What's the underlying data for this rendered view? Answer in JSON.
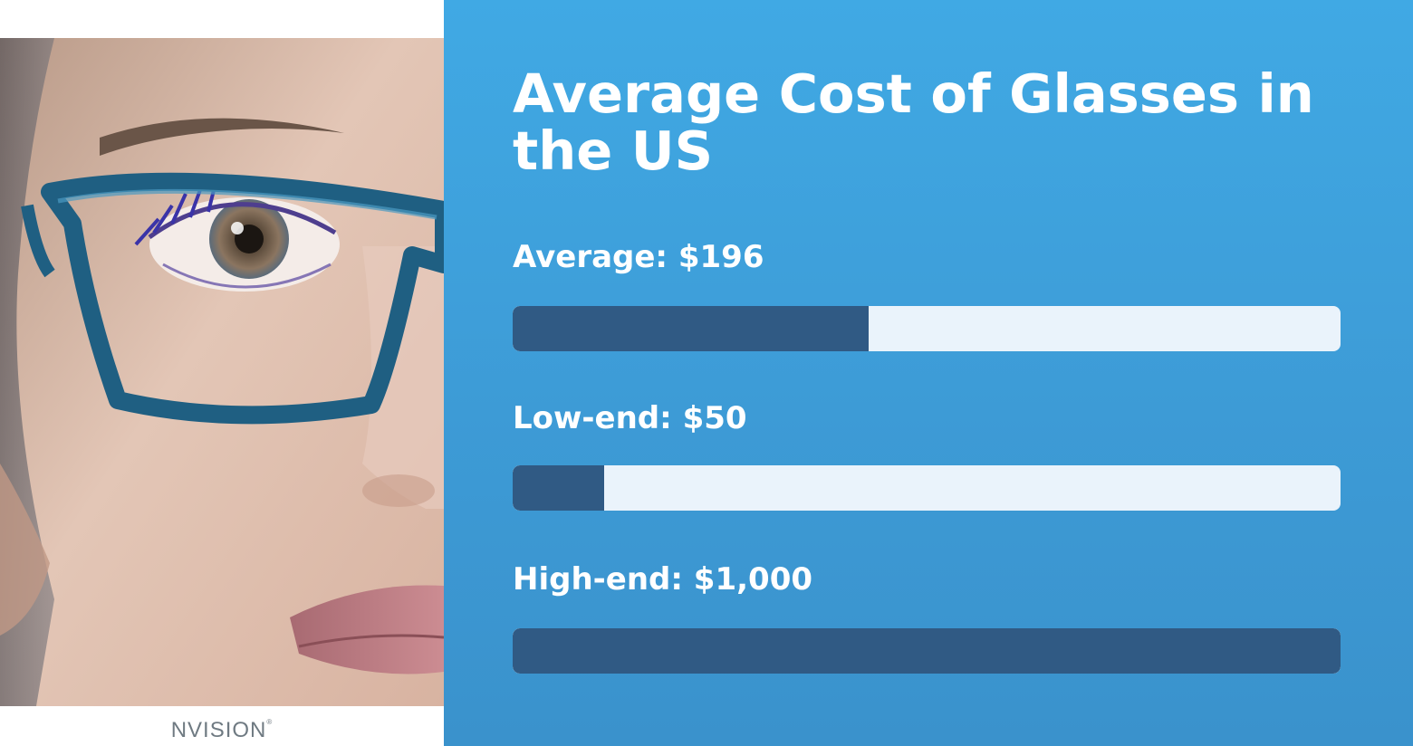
{
  "brand": {
    "logo_text": "NVISION",
    "logo_mark": "®"
  },
  "colors": {
    "panel_blue": "#40a9e4",
    "bar_fill": "#305a84",
    "bar_track": "#eaf3fb",
    "text": "#ffffff"
  },
  "photo": {
    "subject": "woman-wearing-teal-glasses"
  },
  "chart_data": {
    "type": "bar",
    "orientation": "horizontal",
    "title": "Average Cost of Glasses in the US",
    "unit": "USD",
    "xlim": [
      0,
      1000
    ],
    "grid": false,
    "categories": [
      "Average",
      "Low-end",
      "High-end"
    ],
    "values": [
      196,
      50,
      1000
    ],
    "labels": [
      "Average: $196",
      "Low-end: $50",
      "High-end: $1,000"
    ],
    "display_fill_fraction": [
      0.43,
      0.11,
      1.0
    ]
  }
}
